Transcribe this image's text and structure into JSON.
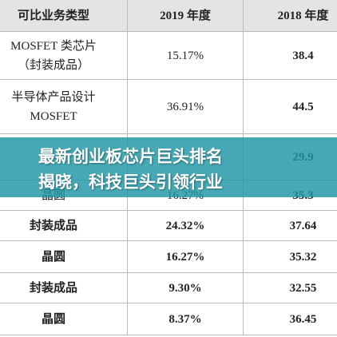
{
  "table": {
    "header": [
      "可比业务类型",
      "2019 年度",
      "2018 年度"
    ],
    "rows": [
      [
        [
          "MOSFET 类芯片",
          "（封装成品）"
        ],
        "15.17%",
        "38.4"
      ],
      [
        [
          "半导体产品设计",
          "MOSFET"
        ],
        "36.91%",
        "44.5"
      ],
      [
        [
          "晶圆"
        ],
        "16.27%",
        "35.3"
      ],
      [
        [
          "封装成品"
        ],
        "24.32%",
        "37.64"
      ],
      [
        [
          "晶圆"
        ],
        "16.27%",
        "35.32"
      ],
      [
        [
          "封装成品"
        ],
        "9.30%",
        "32.55"
      ],
      [
        [
          "晶圆"
        ],
        "8.37%",
        "36.45"
      ]
    ],
    "obscured_cells": [
      "29.9"
    ]
  },
  "banner": {
    "lines": [
      "最新创业板芯片巨头排名",
      "揭晓，科技巨头引领行业"
    ]
  }
}
